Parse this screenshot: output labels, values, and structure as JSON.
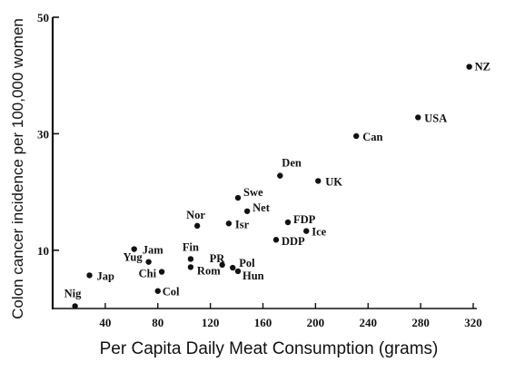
{
  "chart_data": {
    "type": "scatter",
    "title": "",
    "xlabel": "Per Capita Daily Meat Consumption (grams)",
    "ylabel": "Colon cancer incidence per 100,000 women",
    "xlim": [
      0,
      320
    ],
    "ylim": [
      0,
      50
    ],
    "xticks": [
      40,
      80,
      120,
      160,
      200,
      240,
      280,
      320
    ],
    "yticks": [
      10,
      30,
      50
    ],
    "grid": false,
    "legend": "none",
    "points": [
      {
        "label": "NZ",
        "x": 317,
        "y": 41.5
      },
      {
        "label": "USA",
        "x": 278,
        "y": 32.8
      },
      {
        "label": "Can",
        "x": 231,
        "y": 29.6
      },
      {
        "label": "Den",
        "x": 173,
        "y": 22.8
      },
      {
        "label": "UK",
        "x": 202,
        "y": 21.9
      },
      {
        "label": "Swe",
        "x": 141,
        "y": 19.0
      },
      {
        "label": "Net",
        "x": 148,
        "y": 16.7
      },
      {
        "label": "Nor",
        "x": 110,
        "y": 14.2
      },
      {
        "label": "Isr",
        "x": 134,
        "y": 14.6
      },
      {
        "label": "FDP",
        "x": 179,
        "y": 14.8
      },
      {
        "label": "Ice",
        "x": 193,
        "y": 13.3
      },
      {
        "label": "DDP",
        "x": 170,
        "y": 11.8
      },
      {
        "label": "Jam",
        "x": 62,
        "y": 10.2
      },
      {
        "label": "Yug",
        "x": 73,
        "y": 8.0
      },
      {
        "label": "Chi",
        "x": 83,
        "y": 6.3
      },
      {
        "label": "Jap",
        "x": 28,
        "y": 5.7
      },
      {
        "label": "Fin",
        "x": 105,
        "y": 8.5
      },
      {
        "label": "Rom",
        "x": 105,
        "y": 7.1
      },
      {
        "label": "PR",
        "x": 129,
        "y": 7.5
      },
      {
        "label": "Pol",
        "x": 137,
        "y": 7.0
      },
      {
        "label": "Hun",
        "x": 141,
        "y": 6.4
      },
      {
        "label": "Col",
        "x": 80,
        "y": 3.0
      },
      {
        "label": "Nig",
        "x": 17,
        "y": 0.4
      }
    ]
  }
}
